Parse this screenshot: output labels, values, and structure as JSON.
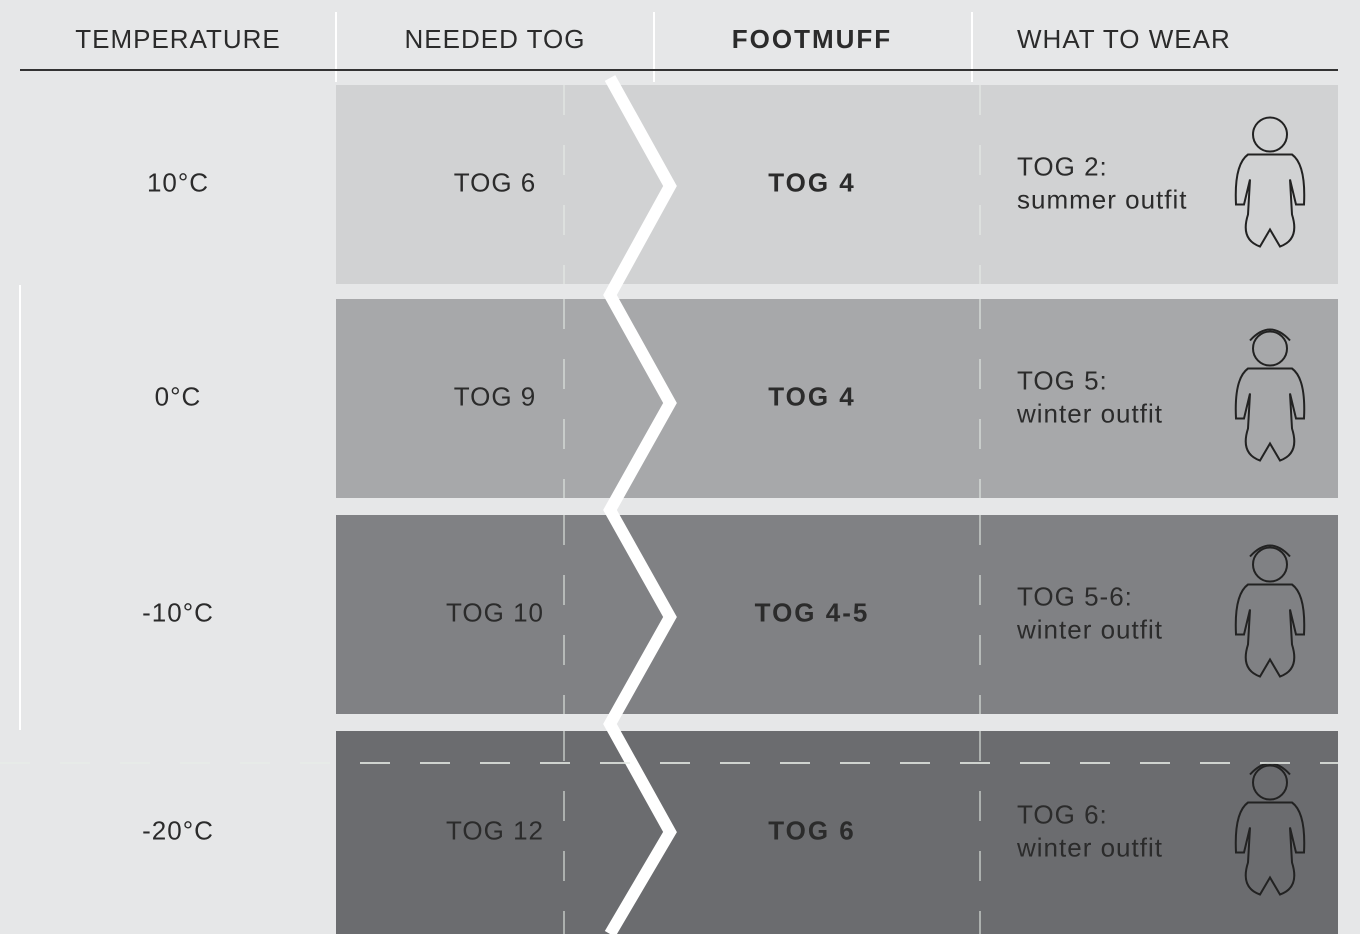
{
  "table": {
    "headers": [
      "TEMPERATURE",
      "NEEDED TOG",
      "FOOTMUFF",
      "WHAT TO WEAR"
    ],
    "rows": [
      [
        "10°C",
        "TOG 6",
        "TOG 4",
        "TOG 2:",
        "summer outfit"
      ],
      [
        "0°C",
        "TOG 9",
        "TOG 4",
        "TOG 5:",
        "winter outfit"
      ],
      [
        "-10°C",
        "TOG 10",
        "TOG 4-5",
        "TOG 5-6:",
        "winter outfit"
      ],
      [
        "-20°C",
        "TOG 12",
        "TOG 6",
        "TOG 6:",
        "winter outfit"
      ]
    ]
  }
}
